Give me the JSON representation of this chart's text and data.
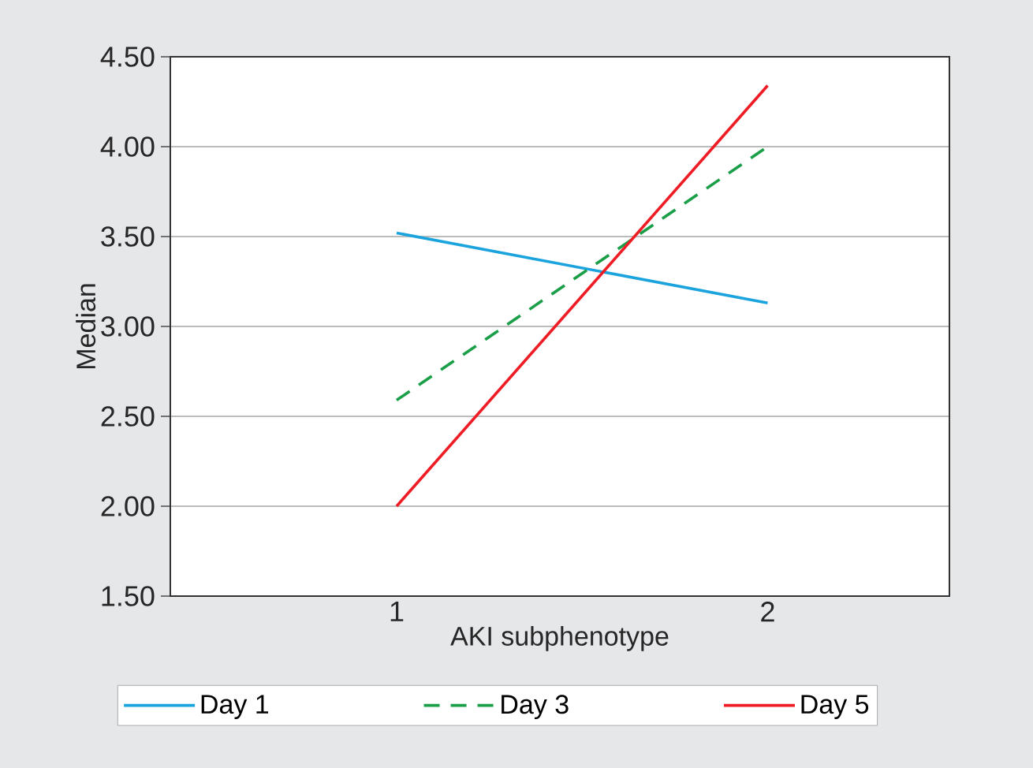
{
  "chart_data": {
    "type": "line",
    "xlabel": "AKI subphenotype",
    "ylabel": "Median",
    "x": [
      1,
      2
    ],
    "xlim": [
      0.39,
      2.49
    ],
    "xticks": [
      1,
      2
    ],
    "ylim": [
      1.5,
      4.5
    ],
    "yticks": [
      {
        "value": 1.5,
        "label": "1.50"
      },
      {
        "value": 2.0,
        "label": "2.00"
      },
      {
        "value": 2.5,
        "label": "2.50"
      },
      {
        "value": 3.0,
        "label": "3.00"
      },
      {
        "value": 3.5,
        "label": "3.50"
      },
      {
        "value": 4.0,
        "label": "4.00"
      },
      {
        "value": 4.5,
        "label": "4.50"
      }
    ],
    "grid": "y",
    "legend": "bottom",
    "marker": "none",
    "series": [
      {
        "name": "Day 1",
        "color": "#1ba3de",
        "line_style": "solid",
        "values": [
          3.52,
          3.13
        ]
      },
      {
        "name": "Day 3",
        "color": "#1a9e48",
        "line_style": "dashed",
        "values": [
          2.59,
          4.0
        ]
      },
      {
        "name": "Day 5",
        "color": "#ee1c24",
        "line_style": "solid",
        "values": [
          2.0,
          4.34
        ]
      }
    ]
  }
}
